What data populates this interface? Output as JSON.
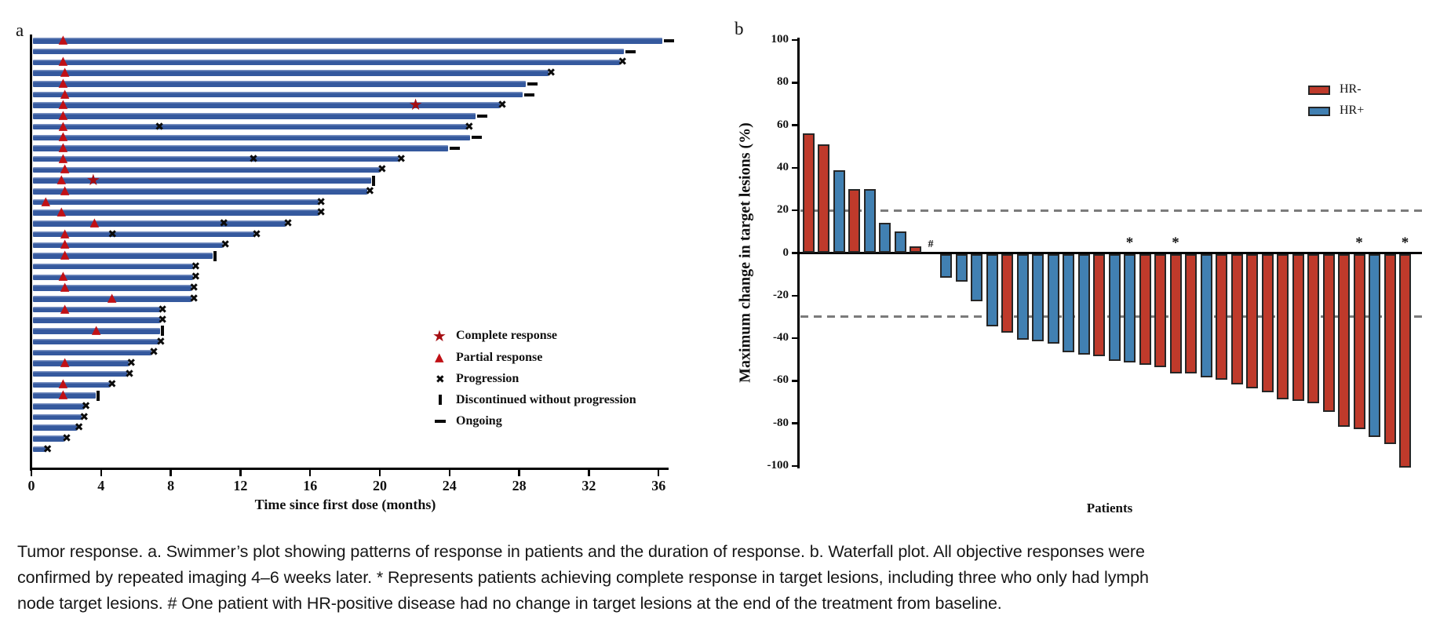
{
  "figure": {
    "caption_lines": [
      "Tumor response. a. Swimmer’s plot showing patterns of response in patients and the duration of response. b. Waterfall plot. All objective responses were",
      "confirmed by repeated imaging 4–6 weeks later. * Represents patients achieving complete response in target lesions, including three who only had lymph",
      "node target lesions. # One patient with HR-positive disease had no change in target lesions at the end of the treatment from baseline."
    ]
  },
  "chart_data": [
    {
      "type": "swimmer",
      "panel_label": "a",
      "xlabel": "Time since first dose (months)",
      "xlim": [
        0,
        37.5
      ],
      "x_ticks": [
        0,
        4,
        8,
        12,
        16,
        20,
        24,
        28,
        32,
        36
      ],
      "bar_color": "#35599e",
      "legend": [
        {
          "marker": "star",
          "label": "Complete response",
          "color": "#a50d12"
        },
        {
          "marker": "triangle",
          "label": "Partial response",
          "color": "#c01015"
        },
        {
          "marker": "x",
          "label": "Progression",
          "color": "#111111"
        },
        {
          "marker": "vbar",
          "label": "Discontinued without progression",
          "color": "#111111"
        },
        {
          "marker": "dash",
          "label": "Ongoing",
          "color": "#111111"
        }
      ],
      "patients": [
        {
          "duration_months": 36.2,
          "end": "ongoing",
          "partial_response_at": 1.9
        },
        {
          "duration_months": 34.0,
          "end": "ongoing"
        },
        {
          "duration_months": 33.8,
          "end": "progression",
          "partial_response_at": 1.9
        },
        {
          "duration_months": 29.7,
          "end": "progression",
          "partial_response_at": 2.0
        },
        {
          "duration_months": 28.4,
          "end": "ongoing",
          "partial_response_at": 1.9
        },
        {
          "duration_months": 28.2,
          "end": "ongoing",
          "partial_response_at": 2.0
        },
        {
          "duration_months": 26.9,
          "end": "progression",
          "partial_response_at": 1.9,
          "complete_response_at": 22.1
        },
        {
          "duration_months": 25.5,
          "end": "ongoing",
          "partial_response_at": 1.9
        },
        {
          "duration_months": 25.0,
          "end": "progression",
          "partial_response_at": 1.9,
          "progression_marks": [
            7.4
          ]
        },
        {
          "duration_months": 25.2,
          "end": "ongoing",
          "partial_response_at": 1.9
        },
        {
          "duration_months": 23.9,
          "end": "ongoing",
          "partial_response_at": 1.9
        },
        {
          "duration_months": 21.1,
          "end": "progression",
          "partial_response_at": 1.9,
          "progression_marks": [
            12.8
          ]
        },
        {
          "duration_months": 20.0,
          "end": "progression",
          "partial_response_at": 2.0
        },
        {
          "duration_months": 19.5,
          "end": "discontinued",
          "partial_response_at": 1.8,
          "complete_response_at": 3.6
        },
        {
          "duration_months": 19.3,
          "end": "progression",
          "partial_response_at": 2.0
        },
        {
          "duration_months": 16.5,
          "end": "progression",
          "partial_response_at": 0.9
        },
        {
          "duration_months": 16.5,
          "end": "progression",
          "partial_response_at": 1.8
        },
        {
          "duration_months": 14.6,
          "end": "progression",
          "partial_response_at": 3.7,
          "progression_marks": [
            11.1
          ]
        },
        {
          "duration_months": 12.8,
          "end": "progression",
          "partial_response_at": 2.0,
          "progression_marks": [
            4.7
          ]
        },
        {
          "duration_months": 11.0,
          "end": "progression",
          "partial_response_at": 2.0
        },
        {
          "duration_months": 10.4,
          "end": "discontinued",
          "partial_response_at": 2.0
        },
        {
          "duration_months": 9.3,
          "end": "progression"
        },
        {
          "duration_months": 9.3,
          "end": "progression",
          "partial_response_at": 1.9
        },
        {
          "duration_months": 9.2,
          "end": "progression",
          "partial_response_at": 2.0
        },
        {
          "duration_months": 9.2,
          "end": "progression",
          "partial_response_at": 4.7
        },
        {
          "duration_months": 7.4,
          "end": "progression",
          "partial_response_at": 2.0
        },
        {
          "duration_months": 7.4,
          "end": "progression"
        },
        {
          "duration_months": 7.4,
          "end": "discontinued",
          "partial_response_at": 3.8
        },
        {
          "duration_months": 7.3,
          "end": "progression"
        },
        {
          "duration_months": 6.9,
          "end": "progression"
        },
        {
          "duration_months": 5.6,
          "end": "progression",
          "partial_response_at": 2.0
        },
        {
          "duration_months": 5.5,
          "end": "progression"
        },
        {
          "duration_months": 4.5,
          "end": "progression",
          "partial_response_at": 1.9
        },
        {
          "duration_months": 3.7,
          "end": "discontinued",
          "partial_response_at": 1.9
        },
        {
          "duration_months": 3.0,
          "end": "progression"
        },
        {
          "duration_months": 2.9,
          "end": "progression"
        },
        {
          "duration_months": 2.6,
          "end": "progression"
        },
        {
          "duration_months": 1.9,
          "end": "progression"
        },
        {
          "duration_months": 0.8,
          "end": "progression"
        }
      ]
    },
    {
      "type": "waterfall",
      "panel_label": "b",
      "ylabel": "Maximum change in target lesions (%)",
      "xlabel": "Patients",
      "ylim": [
        -100,
        100
      ],
      "y_ticks": [
        100,
        80,
        60,
        40,
        20,
        0,
        -20,
        -40,
        -60,
        -80,
        -100
      ],
      "reference_lines": [
        20,
        -30
      ],
      "legend": [
        {
          "label": "HR-",
          "color": "#bf3a2b"
        },
        {
          "label": "HR+",
          "color": "#4180b2"
        }
      ],
      "patients": [
        {
          "value": 56,
          "group": "HR-"
        },
        {
          "value": 51,
          "group": "HR-"
        },
        {
          "value": 39,
          "group": "HR+"
        },
        {
          "value": 30,
          "group": "HR-"
        },
        {
          "value": 30,
          "group": "HR+"
        },
        {
          "value": 14,
          "group": "HR+"
        },
        {
          "value": 10,
          "group": "HR+"
        },
        {
          "value": 3,
          "group": "HR-"
        },
        {
          "value": 0,
          "group": "HR+",
          "flag": "#"
        },
        {
          "value": -11,
          "group": "HR+"
        },
        {
          "value": -13,
          "group": "HR+"
        },
        {
          "value": -22,
          "group": "HR+"
        },
        {
          "value": -34,
          "group": "HR+"
        },
        {
          "value": -37,
          "group": "HR-"
        },
        {
          "value": -40,
          "group": "HR+"
        },
        {
          "value": -41,
          "group": "HR+"
        },
        {
          "value": -42,
          "group": "HR+"
        },
        {
          "value": -46,
          "group": "HR+"
        },
        {
          "value": -47,
          "group": "HR+"
        },
        {
          "value": -48,
          "group": "HR-"
        },
        {
          "value": -50,
          "group": "HR+"
        },
        {
          "value": -51,
          "group": "HR+",
          "flag": "*"
        },
        {
          "value": -52,
          "group": "HR-"
        },
        {
          "value": -53,
          "group": "HR-"
        },
        {
          "value": -56,
          "group": "HR-",
          "flag": "*"
        },
        {
          "value": -56,
          "group": "HR-"
        },
        {
          "value": -58,
          "group": "HR+"
        },
        {
          "value": -59,
          "group": "HR-"
        },
        {
          "value": -61,
          "group": "HR-"
        },
        {
          "value": -63,
          "group": "HR-"
        },
        {
          "value": -65,
          "group": "HR-"
        },
        {
          "value": -68,
          "group": "HR-"
        },
        {
          "value": -69,
          "group": "HR-"
        },
        {
          "value": -70,
          "group": "HR-"
        },
        {
          "value": -74,
          "group": "HR-"
        },
        {
          "value": -81,
          "group": "HR-"
        },
        {
          "value": -82,
          "group": "HR-",
          "flag": "*"
        },
        {
          "value": -86,
          "group": "HR+"
        },
        {
          "value": -89,
          "group": "HR-"
        },
        {
          "value": -100,
          "group": "HR-",
          "flag": "*"
        }
      ]
    }
  ]
}
